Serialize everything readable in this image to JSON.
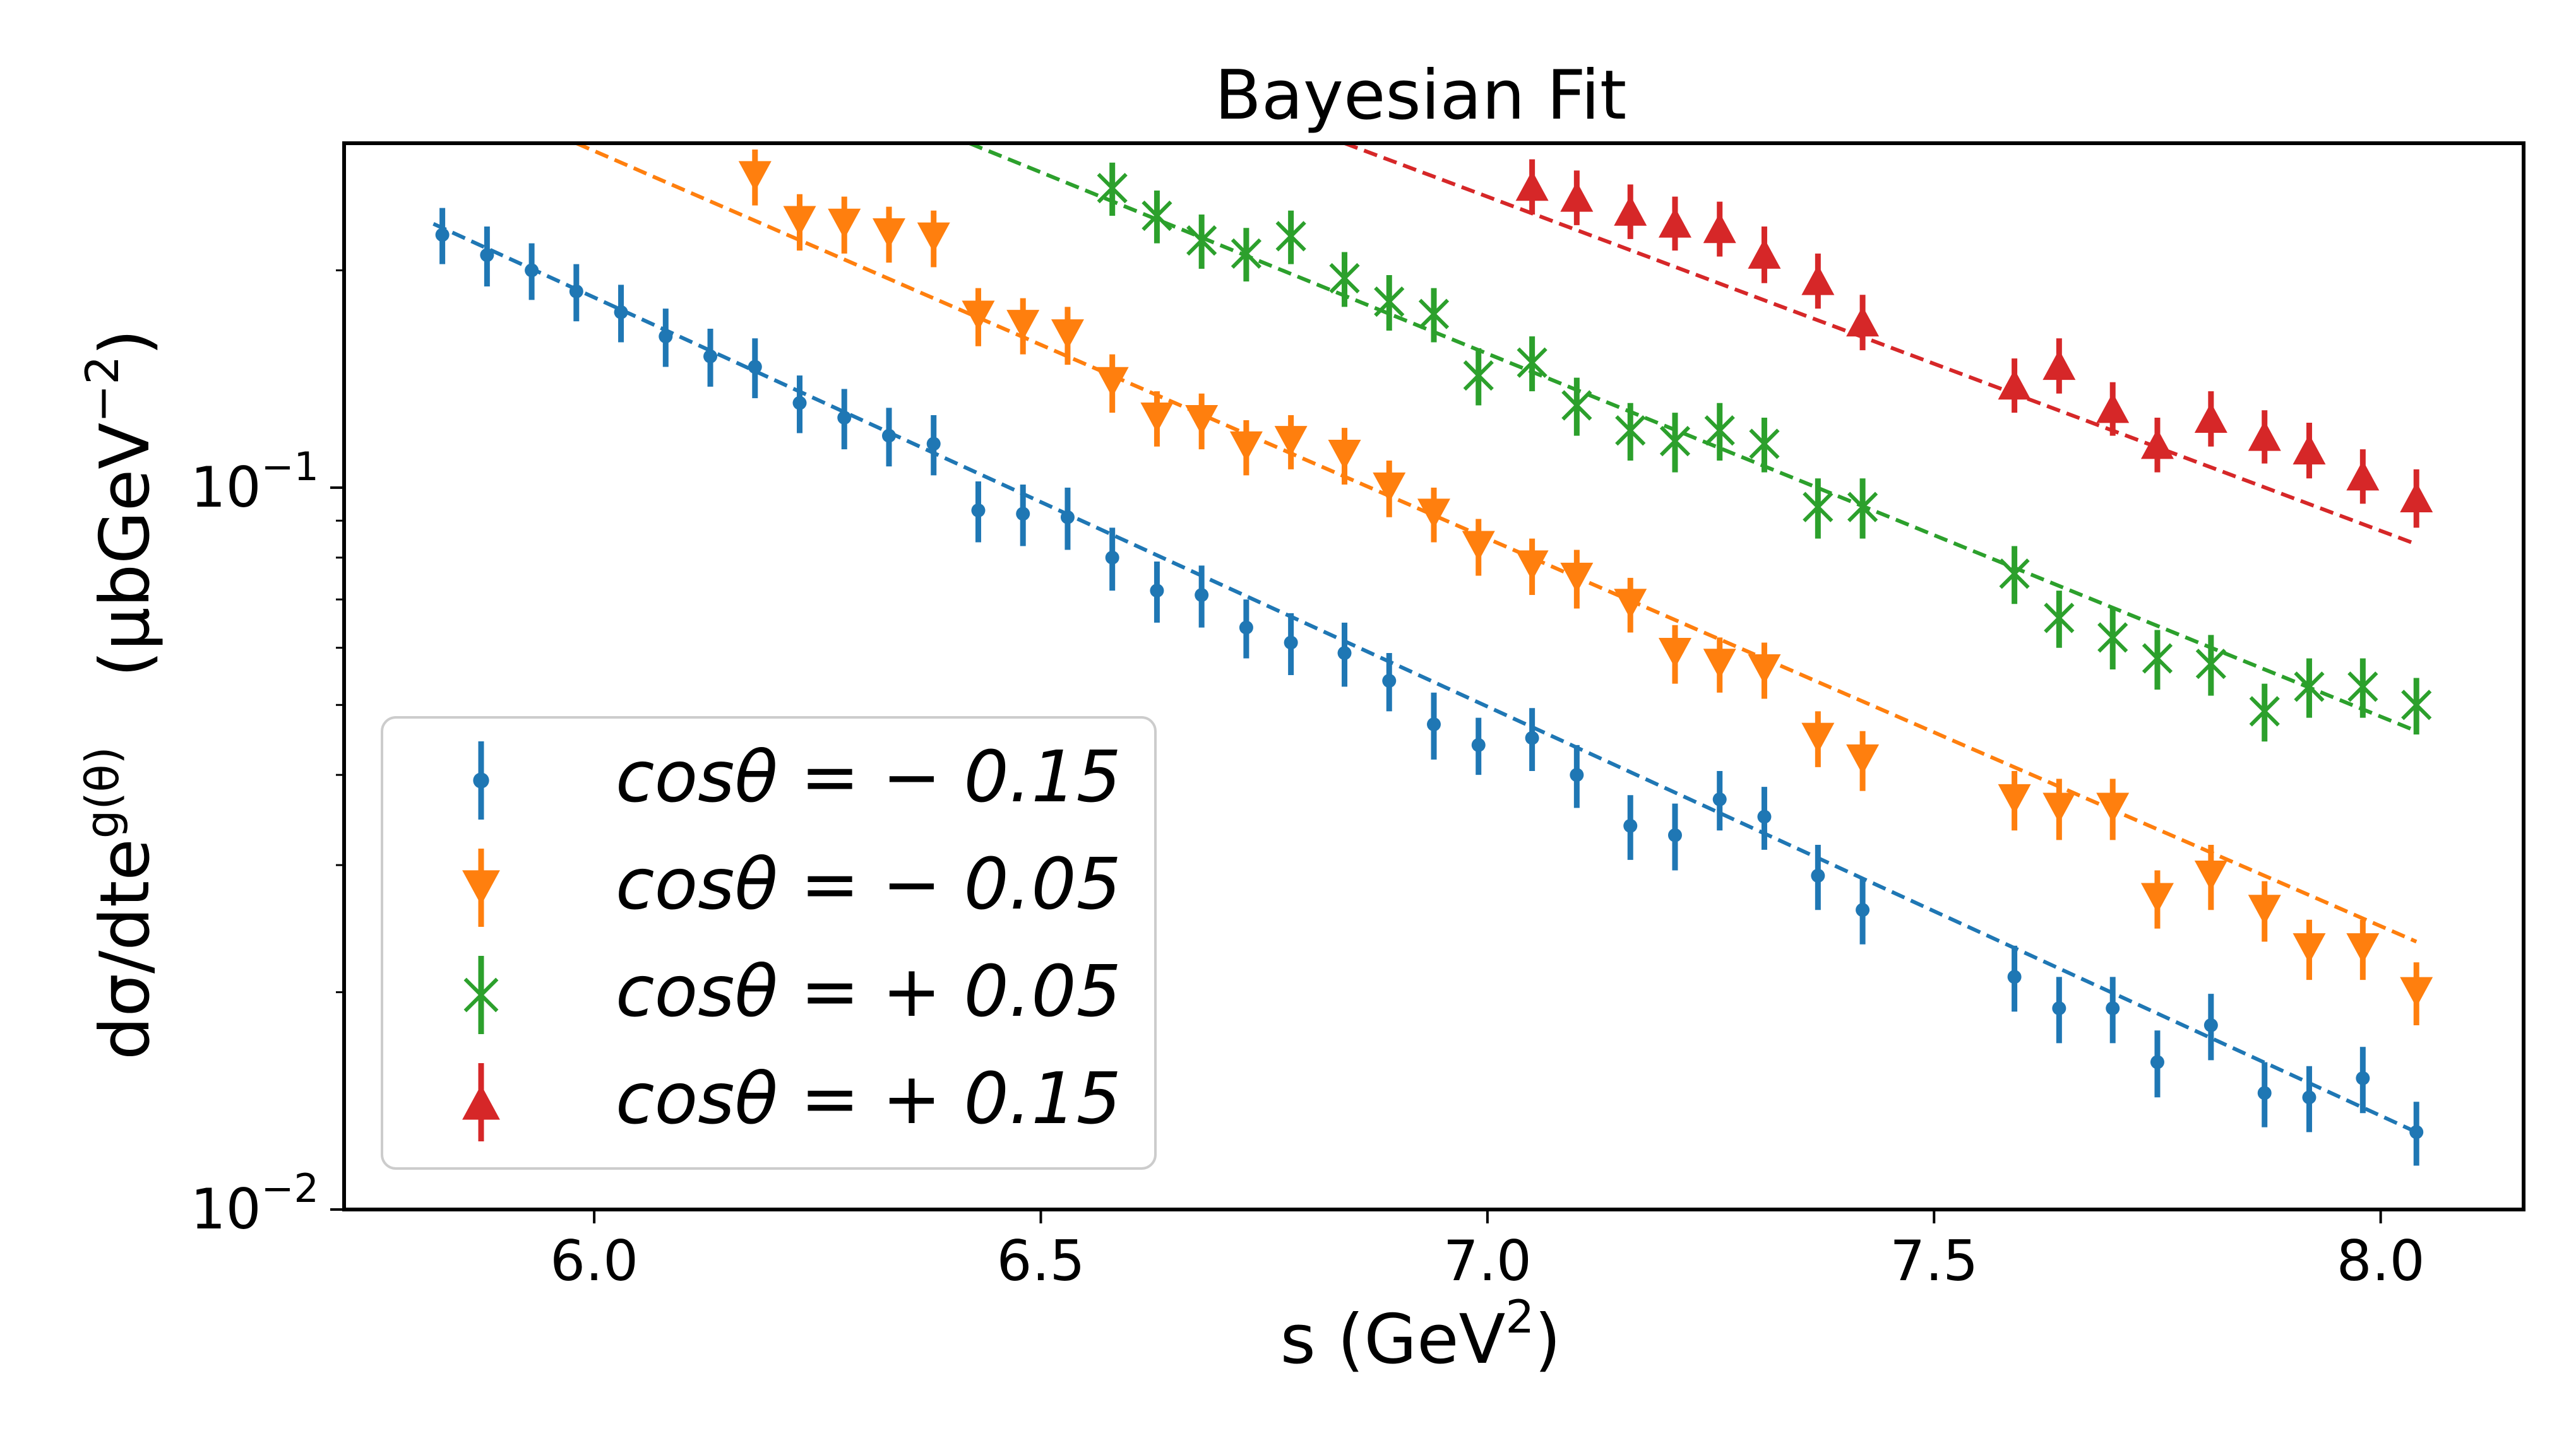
{
  "chart_data": {
    "type": "scatter",
    "title": "Bayesian Fit",
    "xlabel": "s (GeV²)",
    "xlabel_parts": {
      "main": "s (GeV",
      "sup": "2",
      "close": ")"
    },
    "ylabel_parts": {
      "left": "dσ/dte",
      "left_sup": "g(θ)",
      "unit_open": "(μbGeV",
      "unit_sup": "−2",
      "unit_close": ")"
    },
    "xlim": [
      5.72,
      8.16
    ],
    "ylim": [
      0.01,
      0.3
    ],
    "yscale": "log",
    "xticks": [
      {
        "value": 6.0,
        "label": "6.0"
      },
      {
        "value": 6.5,
        "label": "6.5"
      },
      {
        "value": 7.0,
        "label": "7.0"
      },
      {
        "value": 7.5,
        "label": "7.5"
      },
      {
        "value": 8.0,
        "label": "8.0"
      }
    ],
    "yticks": [
      {
        "value": 0.01,
        "base": "10",
        "exp": "−2"
      },
      {
        "value": 0.1,
        "base": "10",
        "exp": "−1"
      }
    ],
    "legend_position": "lower-left",
    "series": [
      {
        "name": "cosθ = −0.15",
        "label_text": "cosθ = − 0.15",
        "color": "#1f77b4",
        "marker": "circle",
        "fit": {
          "x": [
            5.82,
            8.04
          ],
          "y": [
            0.232,
            0.0128
          ]
        },
        "x": [
          5.83,
          5.88,
          5.93,
          5.98,
          6.03,
          6.08,
          6.13,
          6.18,
          6.23,
          6.28,
          6.33,
          6.38,
          6.43,
          6.48,
          6.53,
          6.58,
          6.63,
          6.68,
          6.73,
          6.78,
          6.84,
          6.89,
          6.94,
          6.99,
          7.05,
          7.1,
          7.16,
          7.21,
          7.26,
          7.31,
          7.37,
          7.42,
          7.59,
          7.64,
          7.7,
          7.75,
          7.81,
          7.87,
          7.92,
          7.98,
          8.04
        ],
        "y": [
          0.224,
          0.21,
          0.2,
          0.187,
          0.175,
          0.162,
          0.152,
          0.147,
          0.131,
          0.125,
          0.118,
          0.115,
          0.093,
          0.092,
          0.091,
          0.08,
          0.072,
          0.071,
          0.064,
          0.061,
          0.059,
          0.054,
          0.047,
          0.044,
          0.045,
          0.04,
          0.034,
          0.033,
          0.037,
          0.035,
          0.029,
          0.026,
          0.021,
          0.019,
          0.019,
          0.016,
          0.018,
          0.0145,
          0.0143,
          0.0152,
          0.0128
        ],
        "err": [
          0.02,
          0.02,
          0.018,
          0.017,
          0.016,
          0.015,
          0.014,
          0.014,
          0.012,
          0.012,
          0.011,
          0.011,
          0.009,
          0.009,
          0.009,
          0.008,
          0.007,
          0.007,
          0.006,
          0.006,
          0.006,
          0.005,
          0.005,
          0.004,
          0.0045,
          0.004,
          0.0035,
          0.0035,
          0.0035,
          0.0035,
          0.003,
          0.0027,
          0.0022,
          0.002,
          0.002,
          0.0017,
          0.0019,
          0.0015,
          0.0015,
          0.0016,
          0.0013
        ]
      },
      {
        "name": "cosθ = −0.05",
        "label_text": "cosθ = − 0.05",
        "color": "#ff7f0e",
        "marker": "triangle-down",
        "fit": {
          "x": [
            5.98,
            8.04
          ],
          "y": [
            0.3,
            0.0235
          ]
        },
        "x": [
          6.18,
          6.23,
          6.28,
          6.33,
          6.38,
          6.43,
          6.48,
          6.53,
          6.58,
          6.63,
          6.68,
          6.73,
          6.78,
          6.84,
          6.89,
          6.94,
          6.99,
          7.05,
          7.1,
          7.16,
          7.21,
          7.26,
          7.31,
          7.37,
          7.42,
          7.59,
          7.64,
          7.7,
          7.75,
          7.81,
          7.87,
          7.92,
          7.98,
          8.04
        ],
        "y": [
          0.27,
          0.234,
          0.232,
          0.225,
          0.222,
          0.173,
          0.168,
          0.163,
          0.14,
          0.125,
          0.124,
          0.114,
          0.116,
          0.111,
          0.1,
          0.092,
          0.083,
          0.078,
          0.075,
          0.069,
          0.059,
          0.057,
          0.056,
          0.045,
          0.042,
          0.037,
          0.036,
          0.036,
          0.027,
          0.029,
          0.026,
          0.023,
          0.023,
          0.02
        ],
        "err": [
          0.024,
          0.021,
          0.021,
          0.02,
          0.02,
          0.016,
          0.015,
          0.015,
          0.013,
          0.011,
          0.011,
          0.01,
          0.01,
          0.01,
          0.009,
          0.008,
          0.0075,
          0.007,
          0.007,
          0.006,
          0.0055,
          0.005,
          0.005,
          0.004,
          0.004,
          0.0035,
          0.0035,
          0.0035,
          0.0025,
          0.003,
          0.0025,
          0.0022,
          0.0022,
          0.002
        ]
      },
      {
        "name": "cosθ = +0.05",
        "label_text": "cosθ = + 0.05",
        "color": "#2ca02c",
        "marker": "x",
        "fit": {
          "x": [
            6.42,
            8.04
          ],
          "y": [
            0.3,
            0.046
          ]
        },
        "x": [
          6.58,
          6.63,
          6.68,
          6.73,
          6.78,
          6.84,
          6.89,
          6.94,
          6.99,
          7.05,
          7.1,
          7.16,
          7.21,
          7.26,
          7.31,
          7.37,
          7.42,
          7.59,
          7.64,
          7.7,
          7.75,
          7.81,
          7.87,
          7.92,
          7.98,
          8.04
        ],
        "y": [
          0.26,
          0.238,
          0.22,
          0.211,
          0.223,
          0.195,
          0.181,
          0.174,
          0.143,
          0.149,
          0.13,
          0.12,
          0.116,
          0.12,
          0.115,
          0.094,
          0.094,
          0.076,
          0.066,
          0.062,
          0.058,
          0.057,
          0.049,
          0.053,
          0.053,
          0.05
        ],
        "err": [
          0.022,
          0.02,
          0.019,
          0.018,
          0.019,
          0.017,
          0.016,
          0.015,
          0.013,
          0.013,
          0.012,
          0.011,
          0.011,
          0.011,
          0.01,
          0.009,
          0.009,
          0.007,
          0.006,
          0.006,
          0.0055,
          0.0055,
          0.0045,
          0.005,
          0.005,
          0.0045
        ]
      },
      {
        "name": "cosθ = +0.15",
        "label_text": "cosθ = + 0.15",
        "color": "#d62728",
        "marker": "triangle-up",
        "fit": {
          "x": [
            6.84,
            8.04
          ],
          "y": [
            0.3,
            0.0835
          ]
        },
        "x": [
          7.05,
          7.1,
          7.16,
          7.21,
          7.26,
          7.31,
          7.37,
          7.42,
          7.59,
          7.64,
          7.7,
          7.75,
          7.81,
          7.87,
          7.92,
          7.98,
          8.04
        ],
        "y": [
          0.262,
          0.253,
          0.242,
          0.233,
          0.229,
          0.211,
          0.194,
          0.17,
          0.139,
          0.148,
          0.129,
          0.115,
          0.125,
          0.118,
          0.113,
          0.104,
          0.097
        ],
        "err": [
          0.023,
          0.022,
          0.021,
          0.02,
          0.02,
          0.019,
          0.017,
          0.015,
          0.012,
          0.013,
          0.011,
          0.01,
          0.011,
          0.01,
          0.01,
          0.009,
          0.009
        ]
      }
    ]
  }
}
